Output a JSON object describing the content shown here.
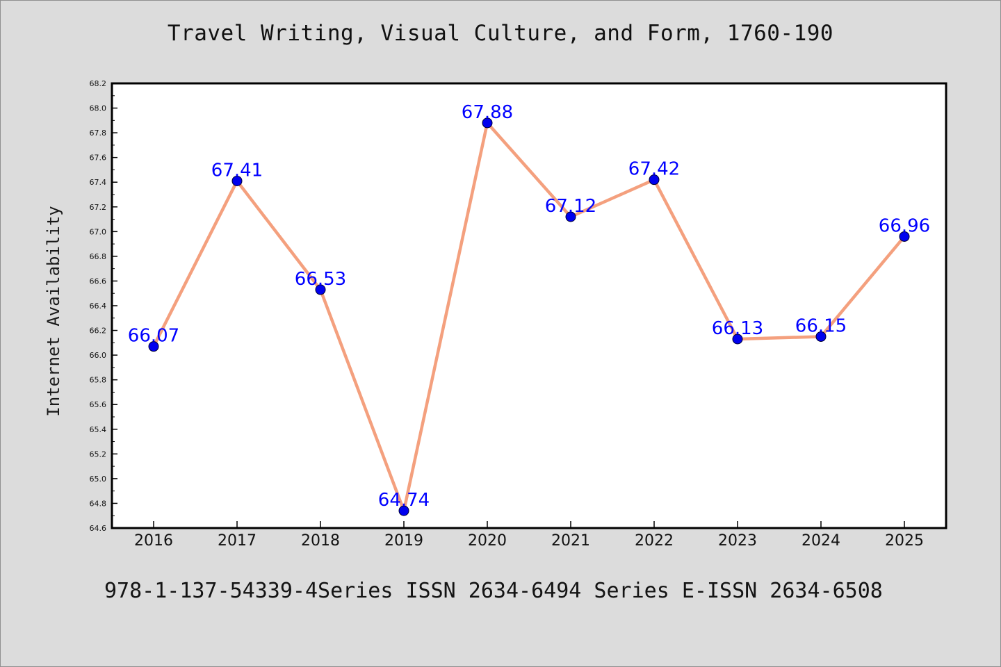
{
  "title": "Travel Writing, Visual Culture, and Form, 1760-190",
  "footer": "978-1-137-54339-4Series ISSN 2634-6494 Series E-ISSN 2634-6508",
  "colors": {
    "background": "#dcdcdc",
    "plot_background": "#ffffff",
    "line": "#f4a07e",
    "marker": "#0000ee",
    "data_label": "#0000ff"
  },
  "chart_data": {
    "type": "line",
    "title": "Travel Writing, Visual Culture, and Form, 1760-190",
    "xlabel": "",
    "ylabel": "Internet Availability",
    "categories": [
      "2016",
      "2017",
      "2018",
      "2019",
      "2020",
      "2021",
      "2022",
      "2023",
      "2024",
      "2025"
    ],
    "series": [
      {
        "values": [
          66.07,
          67.41,
          66.53,
          64.74,
          67.88,
          67.12,
          67.42,
          66.13,
          66.15,
          66.96
        ],
        "labels": [
          "66.07",
          "67.41",
          "66.53",
          "64.74",
          "67.88",
          "67.12",
          "67.42",
          "66.13",
          "66.15",
          "66.96"
        ]
      }
    ],
    "ylim": [
      64.6,
      68.2
    ],
    "yticks": [
      "64.6",
      "64.8",
      "65.0",
      "65.2",
      "65.4",
      "65.6",
      "65.8",
      "66.0",
      "66.2",
      "66.4",
      "66.6",
      "66.8",
      "67.0",
      "67.2",
      "67.4",
      "67.6",
      "67.8",
      "68.0",
      "68.2"
    ],
    "grid": false,
    "legend": "none"
  }
}
